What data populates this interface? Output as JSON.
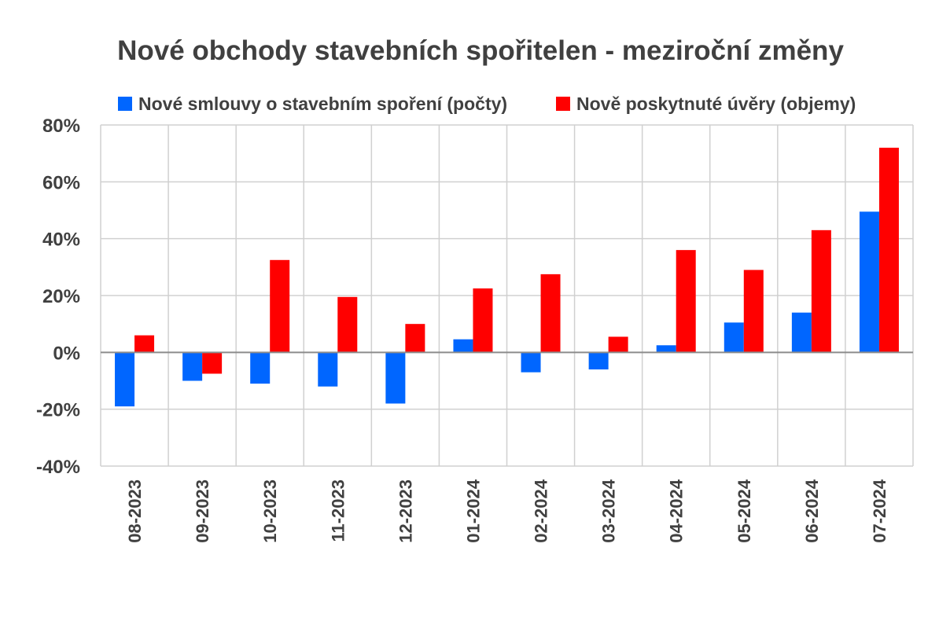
{
  "chart_data": {
    "type": "bar",
    "title": "Nové obchody stavebních spořitelen - meziroční změny",
    "xlabel": "",
    "ylabel": "",
    "ylim": [
      -40,
      80
    ],
    "y_unit": "%",
    "yticks": [
      "80%",
      "60%",
      "40%",
      "20%",
      "0%",
      "-20%",
      "-40%"
    ],
    "ytick_values": [
      80,
      60,
      40,
      20,
      0,
      -20,
      -40
    ],
    "grid": true,
    "legend_position": "top",
    "categories": [
      "08-2023",
      "09-2023",
      "10-2023",
      "11-2023",
      "12-2023",
      "01-2024",
      "02-2024",
      "03-2024",
      "04-2024",
      "05-2024",
      "06-2024",
      "07-2024"
    ],
    "series": [
      {
        "name": "Nové smlouvy o stavebním spoření (počty)",
        "color": "#0066ff",
        "values": [
          -19,
          -10,
          -11,
          -12,
          -18,
          4.6,
          -7,
          -6,
          2.5,
          10.5,
          14,
          49.5
        ]
      },
      {
        "name": "Nově poskytnuté úvěry (objemy)",
        "color": "#ff0000",
        "values": [
          6,
          -7.5,
          32.5,
          19.5,
          10,
          22.5,
          27.5,
          5.5,
          36,
          29,
          43,
          72
        ]
      }
    ]
  }
}
